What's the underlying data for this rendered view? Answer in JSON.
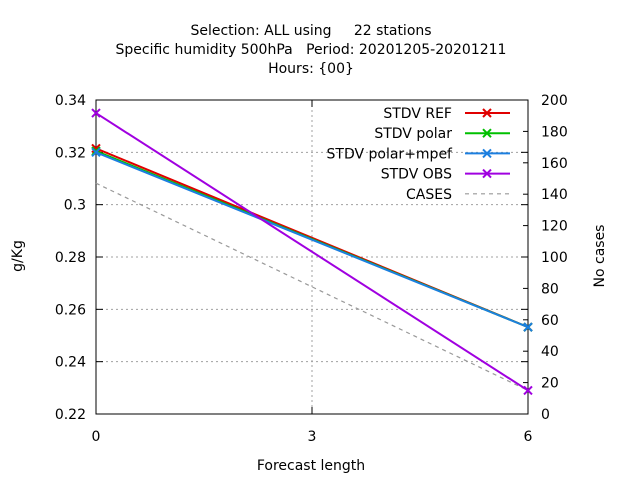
{
  "chart_data": {
    "type": "line",
    "title_lines": [
      "Selection: ALL using     22 stations",
      "Specific humidity 500hPa   Period: 20201205-20201211",
      "Hours: {00}"
    ],
    "xlabel": "Forecast length",
    "ylabel": "g/Kg",
    "y2label": "No cases",
    "x": [
      0,
      6
    ],
    "xlim": [
      0,
      6
    ],
    "xticks": [
      "0",
      "3",
      "6"
    ],
    "ylim": [
      0.22,
      0.34
    ],
    "yticks": [
      "0.22",
      "0.24",
      "0.26",
      "0.28",
      "0.3",
      "0.32",
      "0.34"
    ],
    "y2lim": [
      0,
      200
    ],
    "y2ticks": [
      "0",
      "20",
      "40",
      "60",
      "80",
      "100",
      "120",
      "140",
      "160",
      "180",
      "200"
    ],
    "grid": true,
    "legend_position": "top-right",
    "series": [
      {
        "name": "STDV REF",
        "color": "#e00000",
        "marker": "x",
        "axis": "left",
        "values": [
          0.3215,
          0.2532
        ]
      },
      {
        "name": "STDV polar",
        "color": "#00c000",
        "marker": "x",
        "axis": "left",
        "values": [
          0.3205,
          0.2532
        ]
      },
      {
        "name": "STDV polar+mpef",
        "color": "#1c7fe0",
        "marker": "x",
        "axis": "left",
        "values": [
          0.32,
          0.2532
        ]
      },
      {
        "name": "STDV OBS",
        "color": "#a000e0",
        "marker": "x",
        "axis": "left",
        "values": [
          0.335,
          0.229
        ]
      },
      {
        "name": "CASES",
        "color": "#999999",
        "marker": "none",
        "dashed": true,
        "axis": "right",
        "values": [
          147,
          15
        ]
      }
    ]
  }
}
